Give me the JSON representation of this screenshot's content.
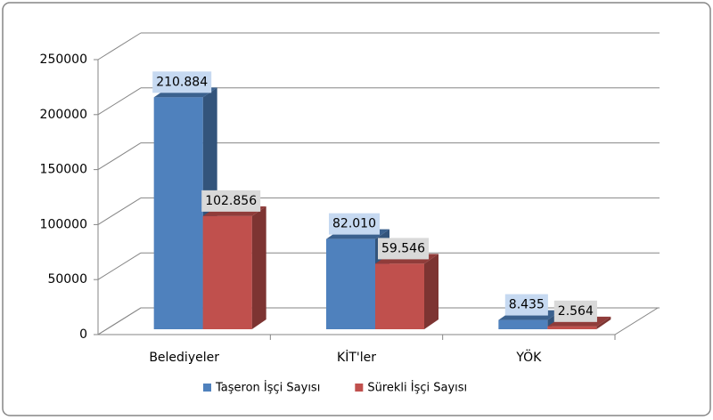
{
  "chart_data": {
    "type": "bar3d",
    "categories": [
      "Belediyeler",
      "KİT'ler",
      "YÖK"
    ],
    "series": [
      {
        "name": "Taşeron İşçi Sayısı",
        "color": "#4f81bd",
        "label_bg": "#c6d9f1",
        "values": [
          210884,
          82010,
          8435
        ],
        "value_labels": [
          "210.884",
          "82.010",
          "8.435"
        ]
      },
      {
        "name": "Sürekli İşçi Sayısı",
        "color": "#c0504d",
        "label_bg": "#d9d9d9",
        "values": [
          102856,
          59546,
          2564
        ],
        "value_labels": [
          "102.856",
          "59.546",
          "2.564"
        ]
      }
    ],
    "ylim": [
      0,
      250000
    ],
    "yticks": [
      0,
      50000,
      100000,
      150000,
      200000,
      250000
    ],
    "grid": true,
    "legend": "bottom"
  }
}
